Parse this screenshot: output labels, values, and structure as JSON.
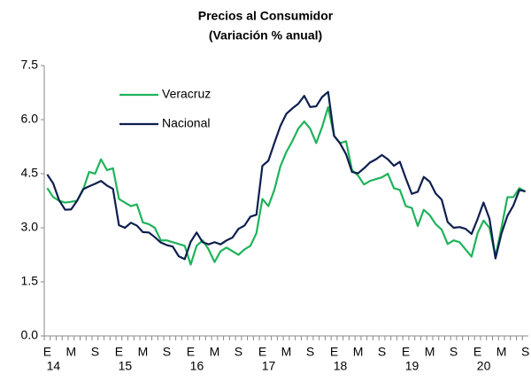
{
  "chart_data": {
    "type": "line",
    "title": "Precios al Consumidor",
    "subtitle": "(Variación % anual)",
    "categories": [
      "E",
      null,
      null,
      null,
      "M",
      null,
      null,
      null,
      "S",
      null,
      null,
      null,
      "E",
      null,
      null,
      null,
      "M",
      null,
      null,
      null,
      "S",
      null,
      null,
      null,
      "E",
      null,
      null,
      null,
      "M",
      null,
      null,
      null,
      "S",
      null,
      null,
      null,
      "E",
      null,
      null,
      null,
      "M",
      null,
      null,
      null,
      "S",
      null,
      null,
      null,
      "E",
      null,
      null,
      null,
      "M",
      null,
      null,
      null,
      "S",
      null,
      null,
      null,
      "E",
      null,
      null,
      null,
      "M",
      null,
      null,
      null,
      "S",
      null,
      null,
      null,
      "E",
      null,
      null,
      null,
      "M",
      null,
      null,
      null,
      "S"
    ],
    "year_labels": [
      "14",
      "15",
      "16",
      "17",
      "18",
      "19",
      "20"
    ],
    "series": [
      {
        "name": "Veracruz",
        "color": "#1fb35a",
        "values": [
          4.1,
          3.85,
          3.75,
          3.7,
          3.72,
          3.75,
          4.05,
          4.55,
          4.5,
          4.9,
          4.6,
          4.65,
          3.8,
          3.7,
          3.6,
          3.65,
          3.15,
          3.1,
          3.0,
          2.65,
          2.65,
          2.6,
          2.55,
          2.5,
          1.98,
          2.5,
          2.65,
          2.4,
          2.05,
          2.35,
          2.45,
          2.35,
          2.25,
          2.4,
          2.5,
          2.85,
          3.8,
          3.6,
          4.05,
          4.7,
          5.1,
          5.4,
          5.75,
          5.95,
          5.75,
          5.35,
          5.8,
          6.35,
          5.55,
          5.35,
          5.4,
          4.6,
          4.45,
          4.2,
          4.3,
          4.35,
          4.4,
          4.5,
          4.1,
          4.05,
          3.6,
          3.55,
          3.05,
          3.5,
          3.35,
          3.1,
          2.95,
          2.55,
          2.65,
          2.6,
          2.4,
          2.2,
          2.85,
          3.2,
          3.0,
          2.2,
          3.0,
          3.85,
          3.85,
          4.1,
          4.0
        ]
      },
      {
        "name": "Nacional",
        "color": "#0e1f4f",
        "values": [
          4.48,
          4.23,
          3.76,
          3.5,
          3.51,
          3.75,
          4.07,
          4.15,
          4.22,
          4.3,
          4.17,
          4.08,
          3.07,
          3.0,
          3.14,
          3.06,
          2.88,
          2.87,
          2.74,
          2.59,
          2.52,
          2.48,
          2.21,
          2.13,
          2.61,
          2.87,
          2.6,
          2.54,
          2.6,
          2.54,
          2.65,
          2.73,
          2.97,
          3.06,
          3.31,
          3.36,
          4.72,
          4.86,
          5.35,
          5.82,
          6.16,
          6.31,
          6.44,
          6.66,
          6.35,
          6.37,
          6.63,
          6.77,
          5.55,
          5.34,
          5.04,
          4.55,
          4.51,
          4.65,
          4.81,
          4.9,
          5.02,
          4.9,
          4.72,
          4.83,
          4.37,
          3.94,
          4.0,
          4.41,
          4.28,
          3.95,
          3.78,
          3.16,
          3.0,
          3.02,
          2.97,
          2.83,
          3.24,
          3.7,
          3.25,
          2.15,
          2.84,
          3.33,
          3.62,
          4.05,
          4.01
        ]
      }
    ],
    "ylim": [
      0,
      7.5
    ],
    "yticks": [
      {
        "value": 0,
        "label": "0.0"
      },
      1.5,
      {
        "value": 3,
        "label": "3.0"
      },
      4.5,
      {
        "value": 6,
        "label": "6.0"
      },
      7.5
    ],
    "grid": false,
    "legend": "upper-left"
  }
}
